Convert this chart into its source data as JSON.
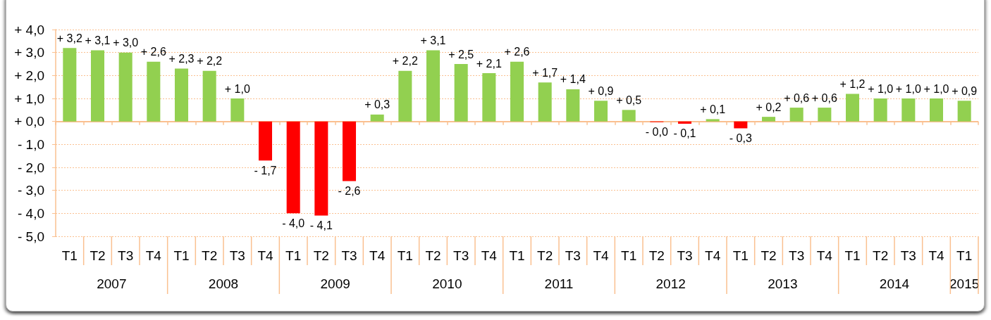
{
  "chart_data": {
    "type": "bar",
    "categories": [
      "T1",
      "T2",
      "T3",
      "T4",
      "T1",
      "T2",
      "T3",
      "T4",
      "T1",
      "T2",
      "T3",
      "T4",
      "T1",
      "T2",
      "T3",
      "T4",
      "T1",
      "T2",
      "T3",
      "T4",
      "T1",
      "T2",
      "T3",
      "T4",
      "T1",
      "T2",
      "T3",
      "T4",
      "T1",
      "T2",
      "T3",
      "T4",
      "T1"
    ],
    "values": [
      3.2,
      3.1,
      3.0,
      2.6,
      2.3,
      2.2,
      1.0,
      -1.7,
      -4.0,
      -4.1,
      -2.6,
      0.3,
      2.2,
      3.1,
      2.5,
      2.1,
      2.6,
      1.7,
      1.4,
      0.9,
      0.5,
      -0.03,
      -0.1,
      0.1,
      -0.3,
      0.2,
      0.6,
      0.6,
      1.2,
      1.0,
      1.0,
      1.0,
      0.9
    ],
    "colors": [
      "#92d050",
      "#92d050",
      "#92d050",
      "#92d050",
      "#92d050",
      "#92d050",
      "#92d050",
      "#ff0000",
      "#ff0000",
      "#ff0000",
      "#ff0000",
      "#92d050",
      "#92d050",
      "#92d050",
      "#92d050",
      "#92d050",
      "#92d050",
      "#92d050",
      "#92d050",
      "#92d050",
      "#92d050",
      "#ff0000",
      "#ff0000",
      "#92d050",
      "#ff0000",
      "#92d050",
      "#92d050",
      "#92d050",
      "#92d050",
      "#92d050",
      "#92d050",
      "#92d050",
      "#92d050"
    ],
    "value_labels": [
      "+ 3,2",
      "+ 3,1",
      "+ 3,0",
      "+ 2,6",
      "+ 2,3",
      "+ 2,2",
      "+ 1,0",
      "- 1,7",
      "- 4,0",
      "- 4,1",
      "- 2,6",
      "+ 0,3",
      "+ 2,2",
      "+ 3,1",
      "+ 2,5",
      "+ 2,1",
      "+ 2,6",
      "+ 1,7",
      "+ 1,4",
      "+ 0,9",
      "+ 0,5",
      "- 0,0",
      "- 0,1",
      "+ 0,1",
      "- 0,3",
      "+ 0,2",
      "+ 0,6",
      "+ 0,6",
      "+ 1,2",
      "+ 1,0",
      "+ 1,0",
      "+ 1,0",
      "+ 0,9"
    ],
    "ylim": [
      -5,
      4
    ],
    "yticks": [
      {
        "value": 4,
        "label": "+ 4,0"
      },
      {
        "value": 3,
        "label": "+ 3,0"
      },
      {
        "value": 2,
        "label": "+ 2,0"
      },
      {
        "value": 1,
        "label": "+ 1,0"
      },
      {
        "value": 0,
        "label": "+ 0,0"
      },
      {
        "value": -1,
        "label": "- 1,0"
      },
      {
        "value": -2,
        "label": "- 2,0"
      },
      {
        "value": -3,
        "label": "- 3,0"
      },
      {
        "value": -4,
        "label": "- 4,0"
      },
      {
        "value": -5,
        "label": "- 5,0"
      }
    ],
    "grid": "y",
    "ref_lines": [
      {
        "axis": "y",
        "value": 0,
        "color": "#fac090"
      }
    ],
    "annotations": [
      "2007",
      "2008",
      "2009",
      "2010",
      "2011",
      "2012",
      "2013",
      "2014",
      "2015"
    ]
  }
}
